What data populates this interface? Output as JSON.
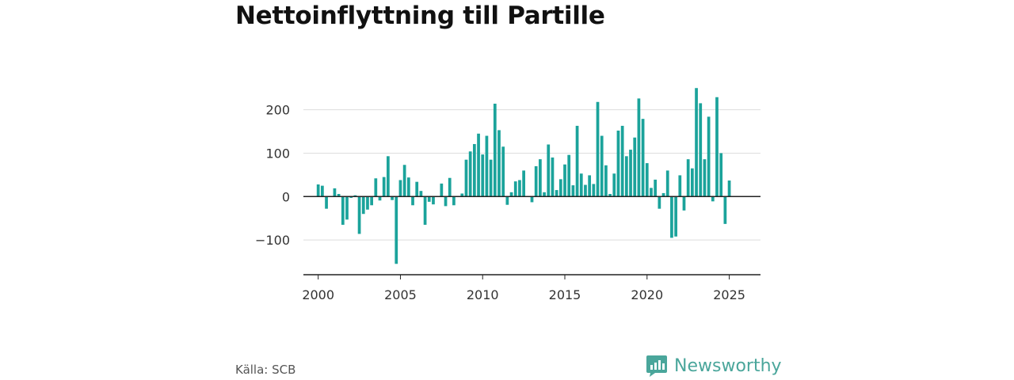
{
  "title": "Nettoinflyttning till Partille",
  "source": "Källa: SCB",
  "brand": {
    "name": "Newsworthy",
    "color": "#4aa69b",
    "icon": "bar-chart-logo-icon"
  },
  "colors": {
    "bar": "#1ba39b",
    "grid": "#dddddd",
    "baseline": "#222222"
  },
  "chart_data": {
    "type": "bar",
    "title": "Nettoinflyttning till Partille",
    "xlabel": "",
    "ylabel": "",
    "xlim": [
      1999.1,
      2026.9
    ],
    "ylim": [
      -180,
      265
    ],
    "grid": true,
    "y_ticks": [
      -100,
      0,
      100,
      200
    ],
    "y_tick_labels": [
      "−100",
      "0",
      "100",
      "200"
    ],
    "x_ticks": [
      2000,
      2005,
      2010,
      2015,
      2020,
      2025
    ],
    "x_tick_labels": [
      "2000",
      "2005",
      "2010",
      "2015",
      "2020",
      "2025"
    ],
    "periods": [
      "2000 Q1",
      "2000 Q2",
      "2000 Q3",
      "2000 Q4",
      "2001 Q1",
      "2001 Q2",
      "2001 Q3",
      "2001 Q4",
      "2002 Q1",
      "2002 Q2",
      "2002 Q3",
      "2002 Q4",
      "2003 Q1",
      "2003 Q2",
      "2003 Q3",
      "2003 Q4",
      "2004 Q1",
      "2004 Q2",
      "2004 Q3",
      "2004 Q4",
      "2005 Q1",
      "2005 Q2",
      "2005 Q3",
      "2005 Q4",
      "2006 Q1",
      "2006 Q2",
      "2006 Q3",
      "2006 Q4",
      "2007 Q1",
      "2007 Q2",
      "2007 Q3",
      "2007 Q4",
      "2008 Q1",
      "2008 Q2",
      "2008 Q3",
      "2008 Q4",
      "2009 Q1",
      "2009 Q2",
      "2009 Q3",
      "2009 Q4",
      "2010 Q1",
      "2010 Q2",
      "2010 Q3",
      "2010 Q4",
      "2011 Q1",
      "2011 Q2",
      "2011 Q3",
      "2011 Q4",
      "2012 Q1",
      "2012 Q2",
      "2012 Q3",
      "2012 Q4",
      "2013 Q1",
      "2013 Q2",
      "2013 Q3",
      "2013 Q4",
      "2014 Q1",
      "2014 Q2",
      "2014 Q3",
      "2014 Q4",
      "2015 Q1",
      "2015 Q2",
      "2015 Q3",
      "2015 Q4",
      "2016 Q1",
      "2016 Q2",
      "2016 Q3",
      "2016 Q4",
      "2017 Q1",
      "2017 Q2",
      "2017 Q3",
      "2017 Q4",
      "2018 Q1",
      "2018 Q2",
      "2018 Q3",
      "2018 Q4",
      "2019 Q1",
      "2019 Q2",
      "2019 Q3",
      "2019 Q4",
      "2020 Q1",
      "2020 Q2",
      "2020 Q3",
      "2020 Q4",
      "2021 Q1",
      "2021 Q2",
      "2021 Q3",
      "2021 Q4",
      "2022 Q1",
      "2022 Q2",
      "2022 Q3",
      "2022 Q4",
      "2023 Q1",
      "2023 Q2",
      "2023 Q3",
      "2023 Q4",
      "2024 Q1",
      "2024 Q2",
      "2024 Q3",
      "2024 Q4",
      "2025 Q1"
    ],
    "values": [
      28,
      25,
      -28,
      0,
      19,
      6,
      -65,
      -53,
      -3,
      3,
      -86,
      -40,
      -30,
      -20,
      42,
      -9,
      45,
      93,
      -8,
      -155,
      38,
      73,
      44,
      -20,
      34,
      13,
      -65,
      -12,
      -18,
      0,
      30,
      -22,
      43,
      -20,
      0,
      7,
      85,
      104,
      121,
      145,
      97,
      140,
      85,
      214,
      153,
      115,
      -19,
      10,
      35,
      38,
      60,
      0,
      -13,
      70,
      86,
      10,
      120,
      90,
      15,
      40,
      74,
      96,
      26,
      163,
      53,
      27,
      49,
      29,
      218,
      140,
      72,
      6,
      53,
      152,
      163,
      93,
      108,
      136,
      226,
      179,
      77,
      20,
      39,
      -28,
      8,
      60,
      -95,
      -92,
      49,
      -32,
      86,
      65,
      250,
      215,
      86,
      184,
      -11,
      229,
      100,
      -63,
      37
    ]
  }
}
